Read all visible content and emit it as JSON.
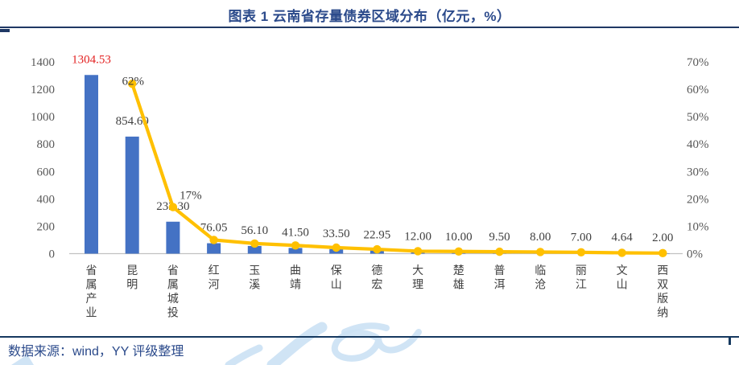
{
  "header": {
    "title": "图表 1 云南省存量债券区域分布（亿元，%）"
  },
  "footer": {
    "source": "数据来源：wind，YY 评级整理"
  },
  "colors": {
    "bar": "#4472c4",
    "line": "#ffc000",
    "first_bar_label": "#e32222",
    "data_label": "#404040",
    "axis_tick": "#595959",
    "axis_line": "#c1c1c1",
    "title": "#2b4a8b",
    "divider_top": "#1f3864",
    "divider_bottom": "#16395f",
    "source_text": "#2b4a8b",
    "watermark": "#cbe1f4"
  },
  "chart_data": {
    "type": "bar",
    "subtype": "bar+line combo, dual axis",
    "title": "图表 1 云南省存量债券区域分布（亿元，%）",
    "grid": false,
    "legend": false,
    "categories": [
      "省属产业",
      "昆明",
      "省属城投",
      "红河",
      "玉溪",
      "曲靖",
      "保山",
      "德宏",
      "大理",
      "楚雄",
      "普洱",
      "临沧",
      "丽江",
      "文山",
      "西双版纳"
    ],
    "bar_series": {
      "axis": "left",
      "values": [
        1304.53,
        854.69,
        233.3,
        76.05,
        56.1,
        41.5,
        33.5,
        22.95,
        12.0,
        10.0,
        9.5,
        8.0,
        7.0,
        4.64,
        2.0
      ],
      "labels": [
        "1304.53",
        "854.69",
        "233.30",
        "76.05",
        "56.10",
        "41.50",
        "33.50",
        "22.95",
        "12.00",
        "10.00",
        "9.50",
        "8.00",
        "7.00",
        "4.64",
        "2.00"
      ]
    },
    "line_series": {
      "axis": "right",
      "values": [
        null,
        62,
        17,
        5.0,
        3.7,
        3.0,
        2.2,
        1.6,
        0.9,
        0.8,
        0.7,
        0.6,
        0.5,
        0.3,
        0.2
      ],
      "labels": [
        null,
        "62%",
        "17%",
        null,
        null,
        null,
        null,
        null,
        null,
        null,
        null,
        null,
        null,
        null,
        null
      ]
    },
    "left_axis": {
      "min": 0,
      "max": 1400,
      "ticks": [
        "0",
        "200",
        "400",
        "600",
        "800",
        "1000",
        "1200",
        "1400"
      ]
    },
    "right_axis": {
      "min": 0,
      "max": 70,
      "ticks": [
        "0%",
        "10%",
        "20%",
        "30%",
        "40%",
        "50%",
        "60%",
        "70%"
      ]
    }
  }
}
